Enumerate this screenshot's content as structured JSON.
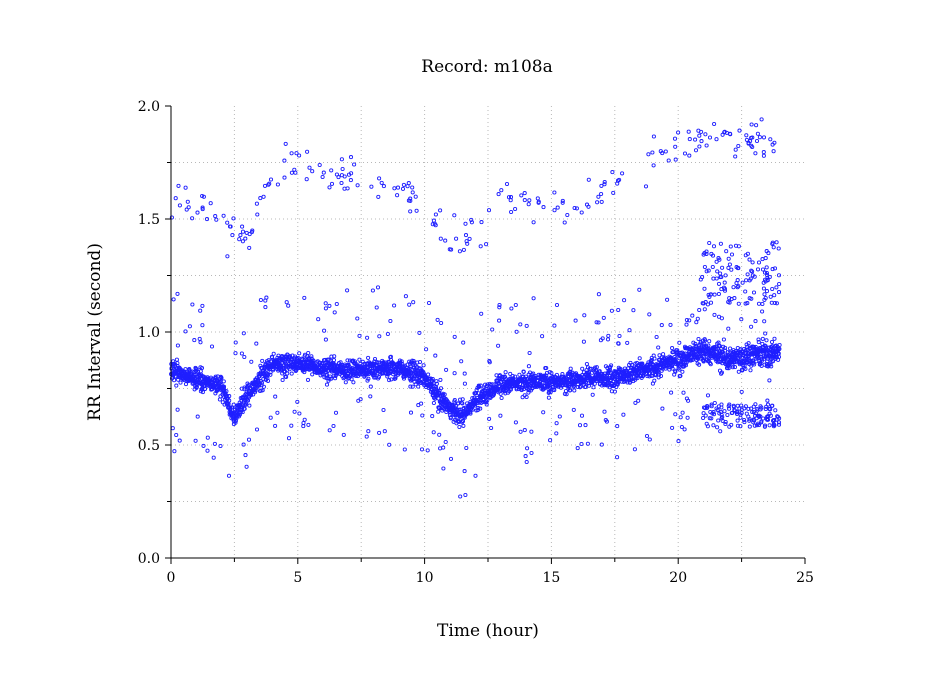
{
  "chart_data": {
    "type": "scatter",
    "title": "Record:  m108a",
    "xlabel": "Time (hour)",
    "ylabel": "RR Interval (second)",
    "xlim": [
      0,
      25
    ],
    "ylim": [
      0.0,
      2.0
    ],
    "x_ticks": [
      0,
      5,
      10,
      15,
      20,
      25
    ],
    "x_tick_labels": [
      "0",
      "5",
      "10",
      "15",
      "20",
      "25"
    ],
    "y_ticks": [
      0.0,
      0.5,
      1.0,
      1.5,
      2.0
    ],
    "y_tick_labels": [
      "0.0",
      "0.5",
      "1.0",
      "1.5",
      "2.0"
    ],
    "grid": true,
    "marker_color": "#1f1fff",
    "series": [
      {
        "name": "",
        "marker": "open-circle",
        "baseline_trend": {
          "x": [
            0,
            1,
            2,
            2.5,
            3,
            4,
            5,
            6,
            7,
            8,
            9,
            10,
            10.5,
            11,
            11.5,
            12,
            13,
            14,
            15,
            16,
            17,
            18,
            19,
            20,
            21,
            22,
            23,
            24
          ],
          "y": [
            0.82,
            0.8,
            0.75,
            0.62,
            0.72,
            0.86,
            0.86,
            0.84,
            0.83,
            0.84,
            0.84,
            0.8,
            0.72,
            0.66,
            0.63,
            0.7,
            0.77,
            0.78,
            0.78,
            0.79,
            0.8,
            0.81,
            0.84,
            0.88,
            0.92,
            0.88,
            0.9,
            0.91
          ]
        },
        "upper_band": {
          "x": [
            0,
            1,
            2,
            3,
            4,
            5,
            6,
            7,
            8,
            9,
            10,
            11,
            12,
            13,
            14,
            15,
            16,
            17,
            18,
            19,
            20,
            21,
            22,
            23,
            24
          ],
          "y": [
            1.6,
            1.58,
            1.45,
            1.4,
            1.72,
            1.72,
            1.7,
            1.68,
            1.66,
            1.64,
            1.58,
            1.4,
            1.42,
            1.55,
            1.58,
            1.58,
            1.55,
            1.62,
            1.7,
            1.76,
            1.82,
            1.86,
            1.88,
            1.86,
            1.84
          ]
        },
        "late_upper_cluster": {
          "x_range": [
            21,
            24
          ],
          "y_range": [
            1.12,
            1.4
          ]
        },
        "late_lower_cluster": {
          "x_range": [
            21,
            24
          ],
          "y_range": [
            0.58,
            0.68
          ]
        },
        "point_count_shown": 3600
      }
    ]
  }
}
